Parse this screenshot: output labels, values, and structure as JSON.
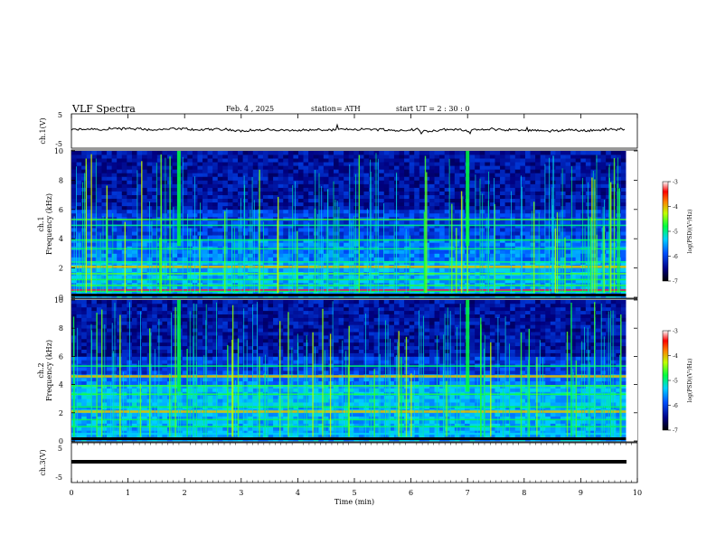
{
  "header": {
    "title": "VLF  Spectra",
    "date": "Feb. 4 , 2025",
    "station": "station= ATH",
    "start": "start  UT  =   2  : 30 : 0"
  },
  "chart_data": [
    {
      "type": "line",
      "name": "ch1-waveform",
      "ylabel": "ch.1(V)",
      "ylim": [
        -5,
        5
      ],
      "yticks": [
        "5",
        "-5"
      ],
      "xlim": [
        0,
        10
      ],
      "level_v": 0.3,
      "series": [
        {
          "values": "noisy trace near 0.3 V, spans 0–9.8 min"
        }
      ]
    },
    {
      "type": "heatmap",
      "name": "ch1-spectrogram",
      "ylabel": "ch.1\nFrequency  (kHz)",
      "ylim": [
        0,
        10
      ],
      "yticks": [
        "0",
        "2",
        "4",
        "6",
        "8",
        "10"
      ],
      "xlim": [
        0,
        9.8
      ],
      "colorbar": {
        "label": "log(PSD)(V²/Hz)",
        "ticks": [
          "-3",
          "-4",
          "-5",
          "-6",
          "-7"
        ],
        "range": [
          -7,
          -3
        ]
      },
      "bands_khz": [
        0.1,
        0.4,
        0.8,
        1.2,
        1.6,
        2.1,
        2.4,
        3.3,
        3.9,
        4.9,
        5.3
      ],
      "strong_bursts_min": [
        1.9,
        7.0
      ]
    },
    {
      "type": "heatmap",
      "name": "ch2-spectrogram",
      "ylabel": "ch.2\nFrequency  (kHz)",
      "ylim": [
        0,
        10
      ],
      "yticks": [
        "0",
        "2",
        "4",
        "6",
        "8",
        "10"
      ],
      "xlim": [
        0,
        9.8
      ],
      "colorbar": {
        "label": "log(PSD)(V²/Hz)",
        "ticks": [
          "-3",
          "-4",
          "-5",
          "-6",
          "-7"
        ],
        "range": [
          -7,
          -3
        ]
      },
      "bands_khz": [
        0.1,
        0.5,
        1.0,
        1.5,
        2.1,
        2.4,
        3.3,
        3.9,
        4.6,
        5.3
      ],
      "strong_bursts_min": [
        1.9,
        7.0
      ]
    },
    {
      "type": "line",
      "name": "ch3-waveform",
      "ylabel": "ch.3(V)",
      "ylim": [
        -5,
        5
      ],
      "yticks": [
        "5",
        "-5"
      ],
      "xlim": [
        0,
        10
      ],
      "level_v": -0.5,
      "series": [
        {
          "values": "flat trace near -0.5 V, spans 0–9.8 min"
        }
      ]
    }
  ],
  "xaxis": {
    "label": "Time  (min)",
    "ticks": [
      "0",
      "1",
      "2",
      "3",
      "4",
      "5",
      "6",
      "7",
      "8",
      "9",
      "10"
    ],
    "range": [
      0,
      10
    ]
  }
}
